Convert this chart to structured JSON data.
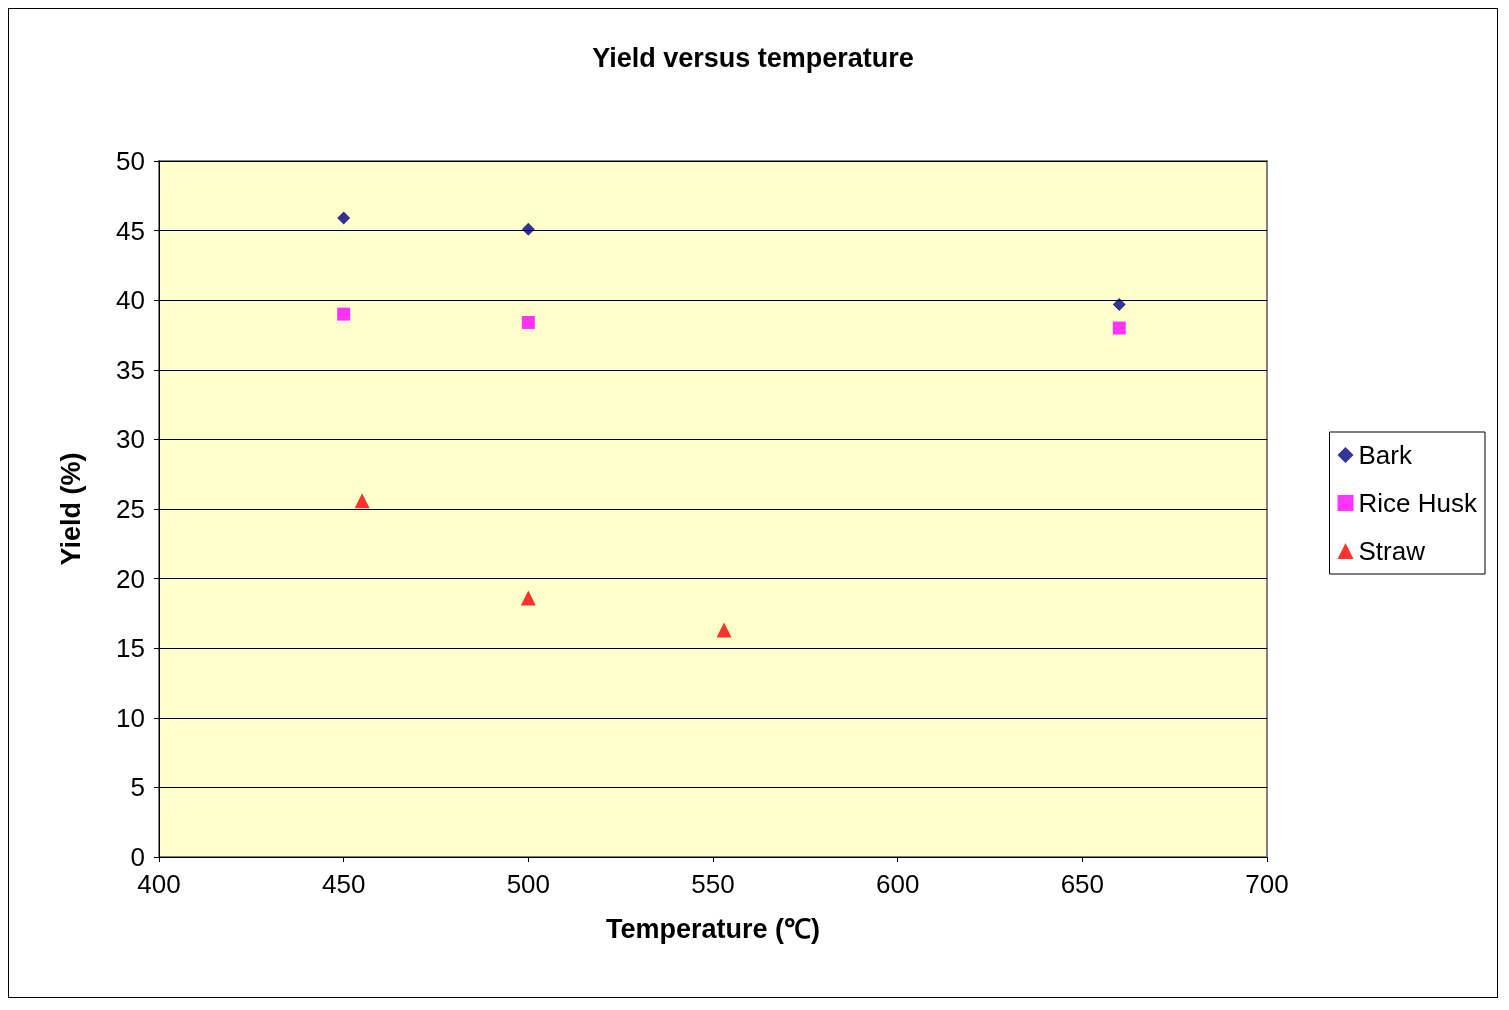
{
  "chart_data": {
    "type": "scatter",
    "title": "Yield versus temperature",
    "xlabel": "Temperature (℃)",
    "ylabel": "Yield (%)",
    "series": [
      {
        "name": "Bark",
        "color": "#000080",
        "marker": "diamond",
        "x": [
          450,
          500,
          660
        ],
        "values": [
          45.9,
          45.1,
          39.7
        ]
      },
      {
        "name": "Rice Husk",
        "color": "#ff00ff",
        "marker": "square",
        "x": [
          450,
          500,
          660
        ],
        "values": [
          39.0,
          38.4,
          38.0
        ]
      },
      {
        "name": "Straw",
        "color": "#ff0000",
        "marker": "triangle",
        "x": [
          455,
          500,
          553
        ],
        "values": [
          25.6,
          18.6,
          16.3
        ]
      }
    ],
    "xlim": [
      400,
      700
    ],
    "xticks": [
      400,
      450,
      500,
      550,
      600,
      650,
      700
    ],
    "ylim": [
      0,
      50
    ],
    "yticks": [
      0,
      5,
      10,
      15,
      20,
      25,
      30,
      35,
      40,
      45,
      50
    ],
    "grid": "y",
    "legend": "right"
  }
}
